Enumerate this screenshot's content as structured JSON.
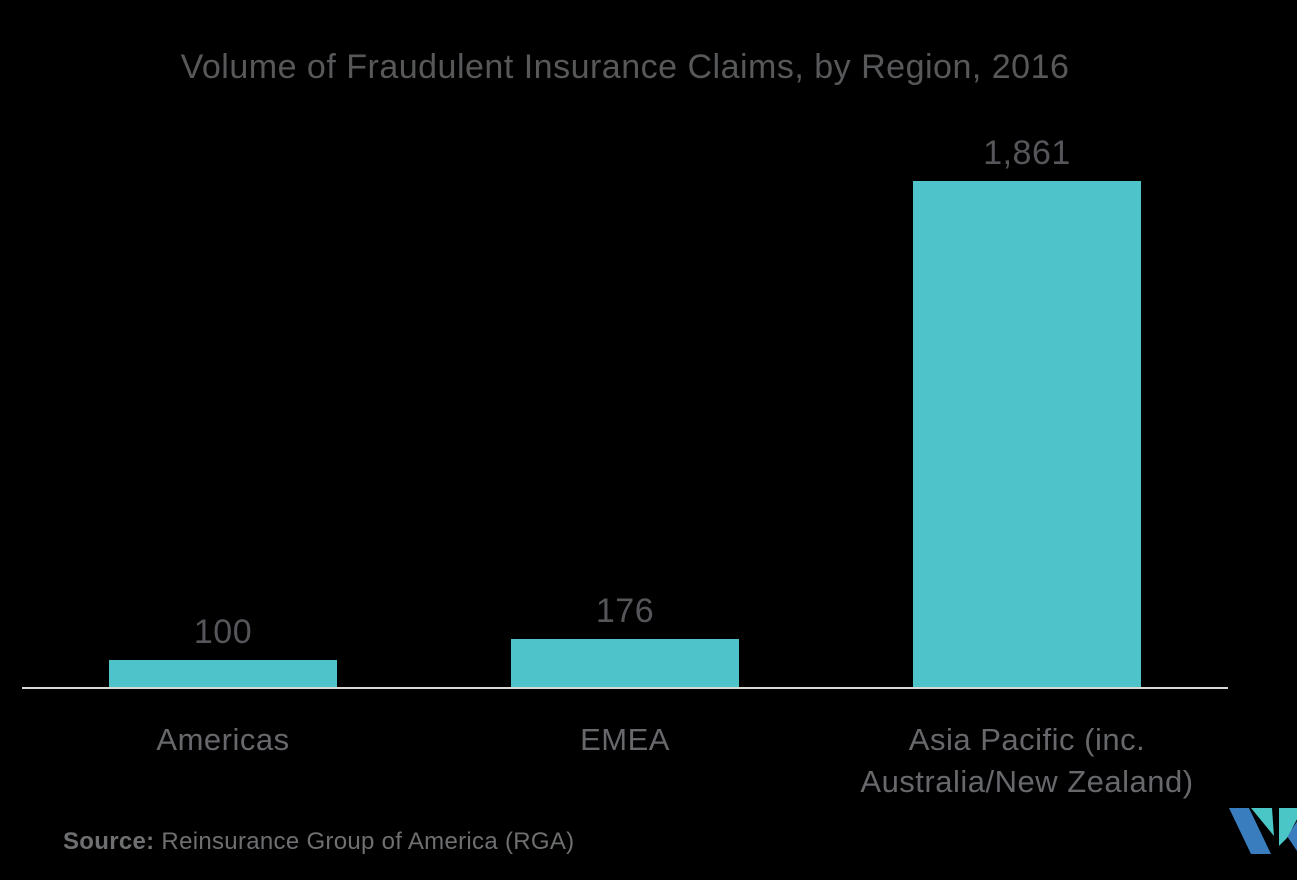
{
  "page": {
    "background_color": "#000000"
  },
  "chart_data": {
    "type": "bar",
    "title": "Volume of Fraudulent Insurance Claims, by Region, 2016",
    "categories": [
      "Americas",
      "EMEA",
      "Asia Pacific (inc. Australia/New Zealand)"
    ],
    "values": [
      100,
      176,
      1861
    ],
    "value_labels": [
      "100",
      "176",
      "1,861"
    ],
    "ylim": [
      0,
      1861
    ],
    "grid": false,
    "legend": "none",
    "bar_color": "#4EC3C9",
    "axis_line_color": "#D8D8D5",
    "title_color": "#57585A",
    "value_label_color": "#55565A",
    "category_label_color": "#67686B"
  },
  "source": {
    "label": "Source:",
    "text": " Reinsurance Group of America (RGA)"
  },
  "logo": {
    "name": "mordor-intelligence-logo-mark",
    "blue": "#3A7DBF",
    "teal": "#4AC6C6"
  }
}
